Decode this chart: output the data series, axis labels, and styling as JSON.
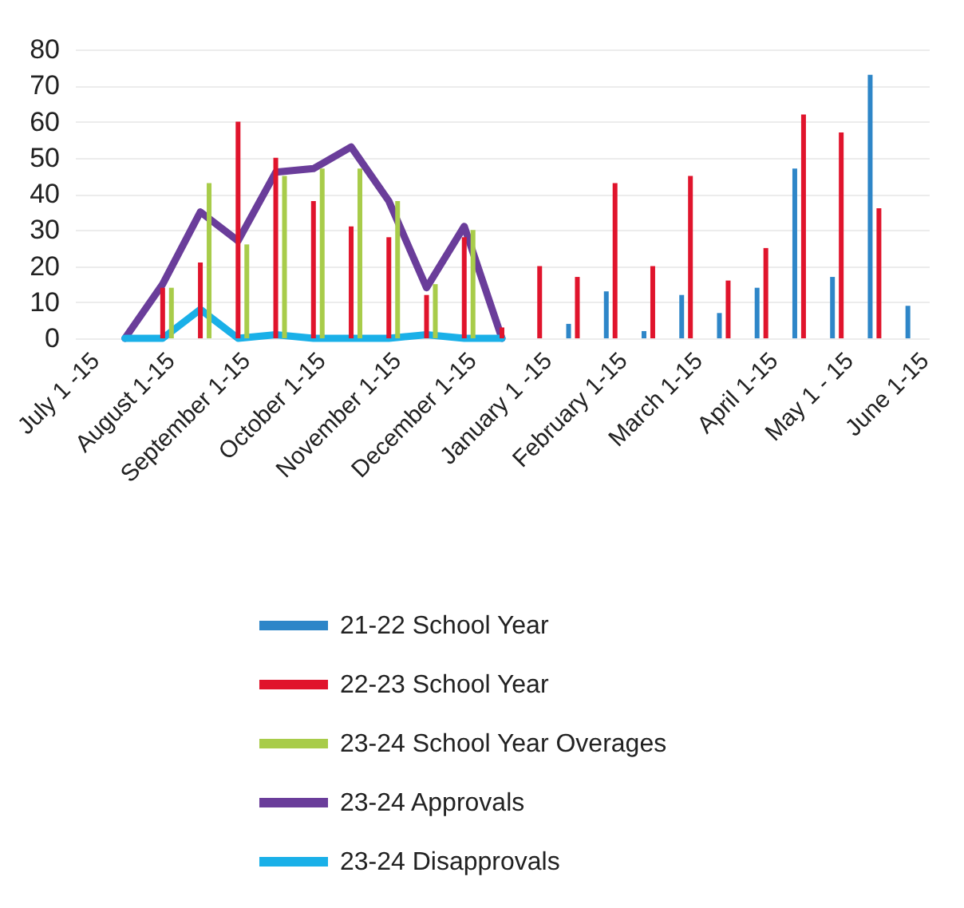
{
  "chart_data": {
    "type": "bar",
    "categories": [
      "July 1 -15",
      null,
      "August 1-15",
      null,
      "September 1-15",
      null,
      "October 1-15",
      null,
      "November 1-15",
      null,
      "December 1-15",
      null,
      "January 1 -15",
      null,
      "February 1-15",
      null,
      "March 1-15",
      null,
      "April 1-15",
      null,
      "May 1 - 15",
      null,
      "June 1-15"
    ],
    "series": [
      {
        "name": "21-22 School Year",
        "color": "#2e86c8",
        "values": [
          null,
          null,
          null,
          null,
          null,
          null,
          null,
          null,
          null,
          null,
          null,
          null,
          null,
          4,
          13,
          2,
          12,
          7,
          14,
          47,
          17,
          73,
          9
        ]
      },
      {
        "name": "22-23 School Year",
        "color": "#e0142c",
        "values": [
          null,
          null,
          14,
          21,
          60,
          50,
          38,
          31,
          28,
          12,
          28,
          3,
          20,
          17,
          43,
          20,
          45,
          16,
          25,
          62,
          57,
          36,
          null
        ]
      },
      {
        "name": "23-24 School Year Overages",
        "color": "#a8cc4a",
        "values": [
          null,
          null,
          14,
          43,
          26,
          45,
          47,
          47,
          38,
          15,
          30,
          null,
          null,
          null,
          null,
          null,
          null,
          null,
          null,
          null,
          null,
          null,
          null
        ]
      },
      {
        "name": "23-24 Approvals",
        "type": "line",
        "color": "#6a3d9a",
        "values": [
          null,
          0,
          15,
          35,
          27,
          46,
          47,
          53,
          38,
          14,
          31,
          0,
          null,
          null,
          null,
          null,
          null,
          null,
          null,
          null,
          null,
          null,
          null
        ]
      },
      {
        "name": "23-24 Disapprovals",
        "type": "line",
        "color": "#1ab0e8",
        "values": [
          null,
          0,
          0,
          8,
          0,
          1,
          0,
          0,
          0,
          1,
          0,
          0,
          null,
          null,
          null,
          null,
          null,
          null,
          null,
          null,
          null,
          null,
          null
        ]
      }
    ],
    "ylim": [
      0,
      80
    ],
    "yticks": [
      0,
      10,
      20,
      30,
      40,
      50,
      60,
      70,
      80
    ],
    "grid": "y",
    "legend": "bottom",
    "marker": "none",
    "line_style": "solid"
  }
}
